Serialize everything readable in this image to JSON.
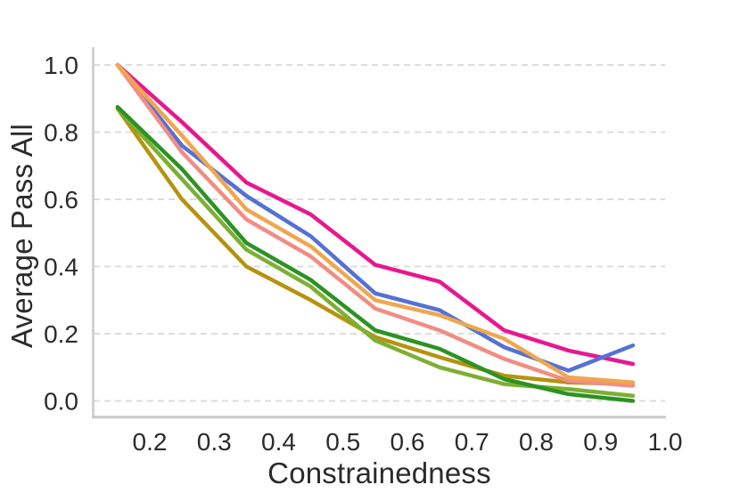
{
  "chart_data": {
    "type": "line",
    "title": "",
    "xlabel": "Constrainedness",
    "ylabel": "Average Pass All",
    "x": [
      0.15,
      0.25,
      0.35,
      0.45,
      0.55,
      0.65,
      0.75,
      0.85,
      0.95
    ],
    "series": [
      {
        "name": "pink",
        "color": "#e7188f",
        "values": [
          1.0,
          0.83,
          0.65,
          0.555,
          0.405,
          0.355,
          0.21,
          0.15,
          0.11
        ]
      },
      {
        "name": "blue",
        "color": "#5371d6",
        "values": [
          1.0,
          0.76,
          0.61,
          0.49,
          0.32,
          0.27,
          0.16,
          0.09,
          0.165
        ]
      },
      {
        "name": "olive",
        "color": "#b59310",
        "values": [
          0.87,
          0.6,
          0.4,
          0.3,
          0.19,
          0.13,
          0.075,
          0.055,
          0.05
        ]
      },
      {
        "name": "salmon",
        "color": "#f18d84",
        "values": [
          1.0,
          0.74,
          0.54,
          0.43,
          0.275,
          0.21,
          0.125,
          0.06,
          0.045
        ]
      },
      {
        "name": "light-green",
        "color": "#7daf33",
        "values": [
          0.87,
          0.66,
          0.45,
          0.34,
          0.18,
          0.1,
          0.05,
          0.035,
          0.015
        ]
      },
      {
        "name": "dark-green",
        "color": "#2b9322",
        "values": [
          0.875,
          0.69,
          0.47,
          0.36,
          0.21,
          0.155,
          0.065,
          0.02,
          0.0
        ]
      },
      {
        "name": "orange",
        "color": "#efa74f",
        "values": [
          1.0,
          0.79,
          0.57,
          0.46,
          0.3,
          0.255,
          0.185,
          0.07,
          0.055
        ]
      }
    ],
    "xticks": [
      0.2,
      0.3,
      0.4,
      0.5,
      0.6,
      0.7,
      0.8,
      0.9,
      1.0
    ],
    "yticks": [
      0.0,
      0.2,
      0.4,
      0.6,
      0.8,
      1.0
    ],
    "xlim": [
      0.113,
      1.0
    ],
    "ylim": [
      -0.05,
      1.05
    ],
    "grid": "horizontal-dashed",
    "legend": "none",
    "colors": {
      "grid": "#dcdcdc",
      "spine": "#c9c9c9",
      "text": "#2b2b2b"
    }
  }
}
